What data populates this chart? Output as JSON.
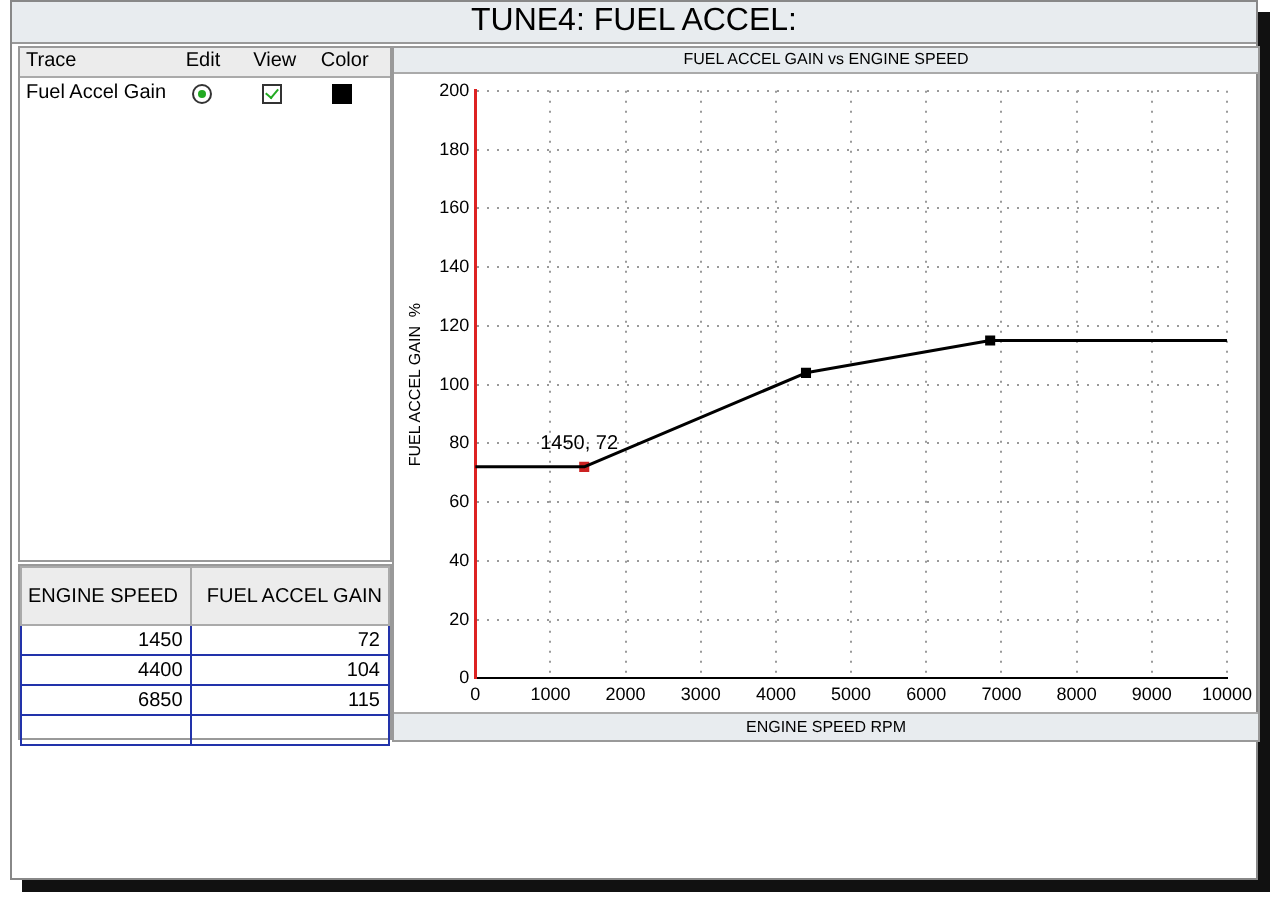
{
  "chart_data": {
    "type": "line",
    "title": "TUNE4:  FUEL ACCEL:",
    "subtitle": "FUEL ACCEL GAIN vs ENGINE SPEED",
    "xlabel": "ENGINE SPEED  RPM",
    "ylabel": "FUEL ACCEL GAIN  %",
    "series": [
      {
        "name": "Fuel Accel Gain",
        "color": "#000000",
        "marker": "none",
        "x": [
          0,
          1450,
          4400,
          6850,
          10000
        ],
        "values": [
          72,
          72,
          104,
          115,
          115
        ]
      },
      {
        "type": "scatter",
        "colors": [
          "#cc2222",
          "#000000",
          "#000000"
        ],
        "x": [
          1450,
          4400,
          6850
        ],
        "values": [
          72,
          104,
          115
        ]
      }
    ],
    "marker": "square",
    "xlim": [
      0,
      10000
    ],
    "xticks": [
      0,
      1000,
      2000,
      3000,
      4000,
      5000,
      6000,
      7000,
      8000,
      9000,
      10000
    ],
    "ylim": [
      0,
      200
    ],
    "yticks": [
      0,
      20,
      40,
      60,
      80,
      100,
      120,
      140,
      160,
      180,
      200
    ],
    "grid": true,
    "legend": "left",
    "annotations": [
      {
        "text": "1450, 72",
        "x": 1450,
        "y": 72
      },
      "Trace",
      "Edit",
      "View",
      "Color",
      "ENGINE SPEED",
      "FUEL ACCEL GAIN",
      "1450",
      "72",
      "4400",
      "104",
      "6850",
      "115"
    ]
  }
}
